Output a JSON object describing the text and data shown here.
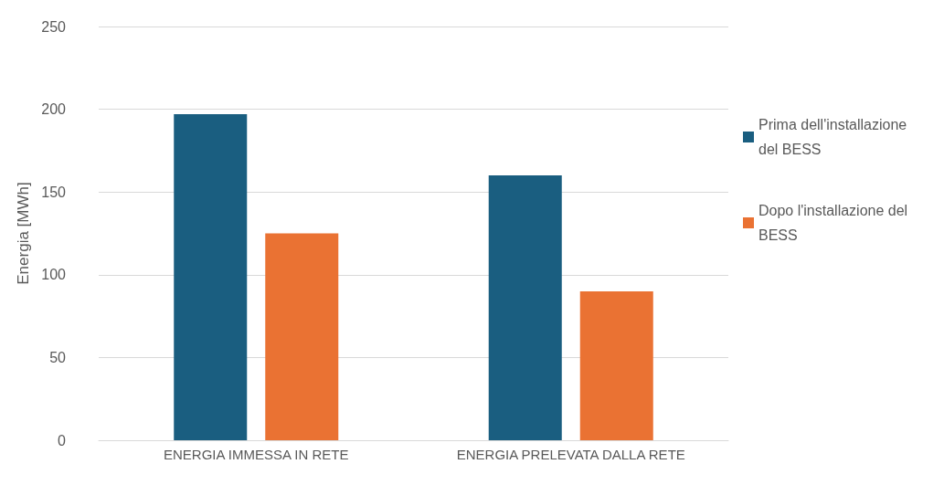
{
  "chart_data": {
    "type": "bar",
    "ylabel": "Energia [MWh]",
    "categories": [
      "ENERGIA IMMESSA IN RETE",
      "ENERGIA PRELEVATA DALLA RETE"
    ],
    "series": [
      {
        "name": "Prima dell'installazione del BESS",
        "color": "#1a5e80",
        "values": [
          197,
          160
        ]
      },
      {
        "name": "Dopo l'installazione del BESS",
        "color": "#ea7233",
        "values": [
          125,
          90
        ]
      }
    ],
    "ylim": [
      0,
      250
    ],
    "yticks": [
      0,
      50,
      100,
      150,
      200,
      250
    ],
    "grid": "y",
    "legend": "right"
  }
}
